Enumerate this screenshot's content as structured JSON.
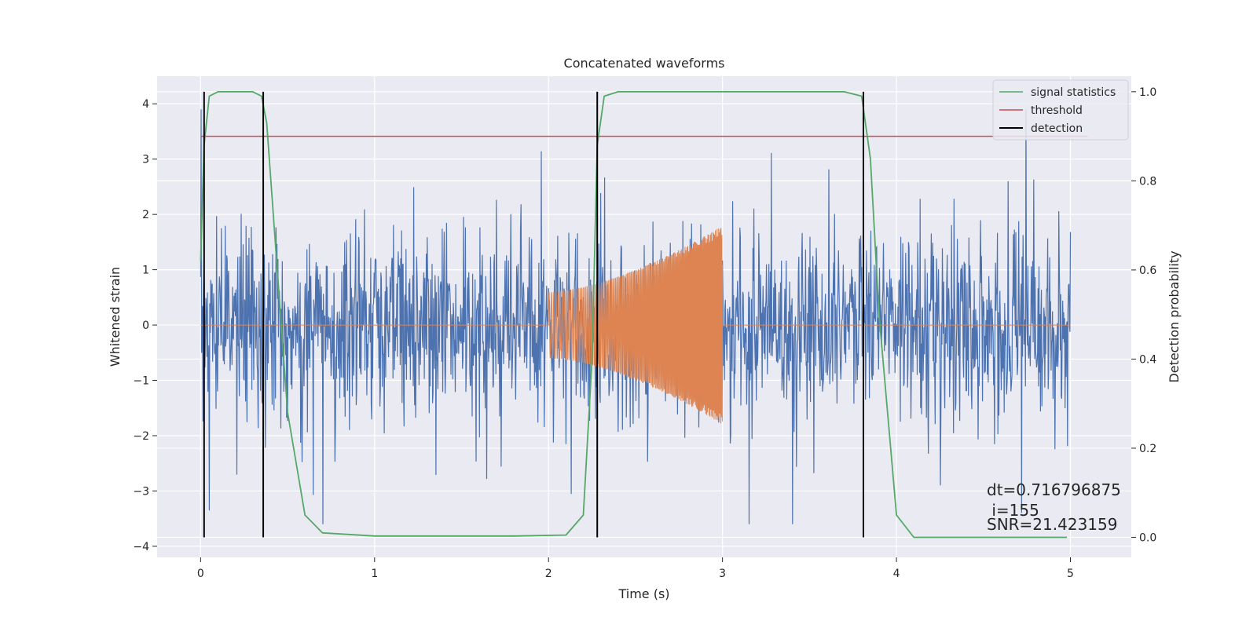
{
  "chart_data": {
    "type": "line",
    "title": "Concatenated waveforms",
    "xlabel": "Time (s)",
    "ylabel": "Whitened strain",
    "ylabel_right": "Detection probability",
    "xlim": [
      -0.25,
      5.35
    ],
    "ylim": [
      -4.2,
      4.5
    ],
    "ylim_right": [
      -0.045,
      1.035
    ],
    "x_ticks": [
      0,
      1,
      2,
      3,
      4,
      5
    ],
    "y_ticks": [
      -4,
      -3,
      -2,
      -1,
      0,
      1,
      2,
      3,
      4
    ],
    "y_ticks_right": [
      0.0,
      0.2,
      0.4,
      0.6,
      0.8,
      1.0
    ],
    "x_tick_labels": [
      "0",
      "1",
      "2",
      "3",
      "4",
      "5"
    ],
    "y_tick_labels": [
      "−4",
      "−3",
      "−2",
      "−1",
      "0",
      "1",
      "2",
      "3",
      "4"
    ],
    "y_tick_labels_right": [
      "0.0",
      "0.2",
      "0.4",
      "0.6",
      "0.8",
      "1.0"
    ],
    "grid": true,
    "legend_position": "top-right",
    "colors": {
      "background": "#eaeaf2",
      "grid": "#ffffff",
      "strain": "#4c72b0",
      "injection": "#dd8452",
      "signal_statistics": "#55a868",
      "threshold": "#c44e52",
      "detection": "#000000"
    },
    "series": [
      {
        "name": "",
        "axis": "left",
        "kind": "noise",
        "x_range": [
          0,
          5
        ],
        "amplitude_range": [
          -3.6,
          3.9
        ]
      },
      {
        "name": "",
        "axis": "left",
        "kind": "chirp",
        "x_range": [
          2.0,
          3.0
        ],
        "envelope_start": 0.6,
        "envelope_end": 1.8
      },
      {
        "name": "signal statistics",
        "axis": "right",
        "x": [
          0.0,
          0.02,
          0.05,
          0.1,
          0.3,
          0.35,
          0.38,
          0.45,
          0.5,
          0.6,
          0.7,
          1.0,
          1.8,
          2.1,
          2.2,
          2.25,
          2.28,
          2.32,
          2.4,
          3.7,
          3.8,
          3.85,
          3.9,
          4.0,
          4.1,
          4.9,
          4.98
        ],
        "values": [
          0.62,
          0.88,
          0.99,
          1.0,
          1.0,
          0.99,
          0.93,
          0.55,
          0.28,
          0.05,
          0.01,
          0.003,
          0.003,
          0.005,
          0.05,
          0.4,
          0.88,
          0.99,
          1.0,
          1.0,
          0.99,
          0.85,
          0.5,
          0.05,
          0.0,
          0.0,
          0.0
        ]
      },
      {
        "name": "threshold",
        "axis": "right",
        "x": [
          0.0,
          5.1
        ],
        "values": [
          0.9,
          0.9
        ]
      },
      {
        "name": "detection",
        "axis": "right",
        "kind": "vlines",
        "x": [
          0.02,
          0.36,
          2.28,
          3.81
        ],
        "y_range": [
          0.0,
          1.0
        ]
      }
    ],
    "legend": [
      "signal statistics",
      "threshold",
      "detection"
    ],
    "annotations": [
      "dt=0.716796875",
      " i=155",
      "SNR=21.423159"
    ]
  }
}
